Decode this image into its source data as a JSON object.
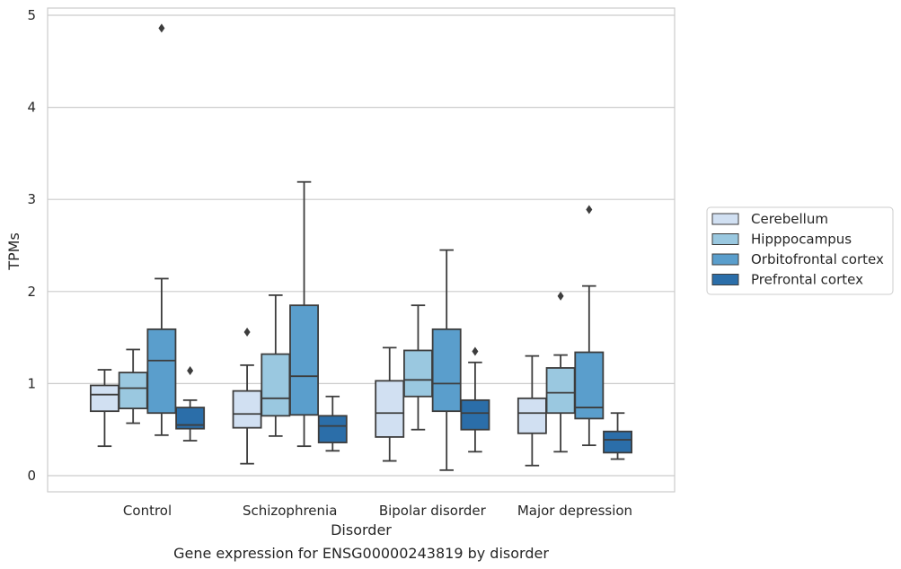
{
  "chart_data": {
    "type": "boxplot",
    "caption": "Gene expression for ENSG00000243819 by disorder",
    "xlabel": "Disorder",
    "ylabel": "TPMs",
    "ylim": [
      -0.17,
      5.12
    ],
    "yticks": [
      0,
      1,
      2,
      3,
      4,
      5
    ],
    "grid": "horizontal",
    "legend_position": "right",
    "categories": [
      "Control",
      "Schizophrenia",
      "Bipolar disorder",
      "Major depression"
    ],
    "series": [
      {
        "name": "Cerebellum",
        "color": "#d1e0f2",
        "boxes": [
          {
            "whisker_low": 0.32,
            "q1": 0.7,
            "median": 0.88,
            "q3": 0.98,
            "whisker_high": 1.15,
            "outliers": []
          },
          {
            "whisker_low": 0.13,
            "q1": 0.52,
            "median": 0.67,
            "q3": 0.92,
            "whisker_high": 1.2,
            "outliers": [
              1.56
            ]
          },
          {
            "whisker_low": 0.16,
            "q1": 0.42,
            "median": 0.68,
            "q3": 1.03,
            "whisker_high": 1.39,
            "outliers": []
          },
          {
            "whisker_low": 0.11,
            "q1": 0.46,
            "median": 0.68,
            "q3": 0.84,
            "whisker_high": 1.3,
            "outliers": []
          }
        ]
      },
      {
        "name": "Hipppocampus",
        "color": "#9ac8e0",
        "boxes": [
          {
            "whisker_low": 0.57,
            "q1": 0.73,
            "median": 0.95,
            "q3": 1.12,
            "whisker_high": 1.37,
            "outliers": []
          },
          {
            "whisker_low": 0.43,
            "q1": 0.65,
            "median": 0.84,
            "q3": 1.32,
            "whisker_high": 1.96,
            "outliers": []
          },
          {
            "whisker_low": 0.5,
            "q1": 0.86,
            "median": 1.04,
            "q3": 1.36,
            "whisker_high": 1.85,
            "outliers": []
          },
          {
            "whisker_low": 0.26,
            "q1": 0.68,
            "median": 0.9,
            "q3": 1.17,
            "whisker_high": 1.31,
            "outliers": [
              1.95
            ]
          }
        ]
      },
      {
        "name": "Orbitofrontal cortex",
        "color": "#5a9ecc",
        "boxes": [
          {
            "whisker_low": 0.44,
            "q1": 0.68,
            "median": 1.25,
            "q3": 1.59,
            "whisker_high": 2.14,
            "outliers": [
              4.86
            ]
          },
          {
            "whisker_low": 0.32,
            "q1": 0.66,
            "median": 1.08,
            "q3": 1.85,
            "whisker_high": 3.19,
            "outliers": []
          },
          {
            "whisker_low": 0.06,
            "q1": 0.7,
            "median": 1.0,
            "q3": 1.59,
            "whisker_high": 2.45,
            "outliers": []
          },
          {
            "whisker_low": 0.33,
            "q1": 0.62,
            "median": 0.74,
            "q3": 1.34,
            "whisker_high": 2.06,
            "outliers": [
              2.89
            ]
          }
        ]
      },
      {
        "name": "Prefrontal cortex",
        "color": "#2b6ea9",
        "boxes": [
          {
            "whisker_low": 0.38,
            "q1": 0.51,
            "median": 0.55,
            "q3": 0.74,
            "whisker_high": 0.82,
            "outliers": [
              1.14
            ]
          },
          {
            "whisker_low": 0.27,
            "q1": 0.36,
            "median": 0.54,
            "q3": 0.65,
            "whisker_high": 0.86,
            "outliers": []
          },
          {
            "whisker_low": 0.26,
            "q1": 0.5,
            "median": 0.68,
            "q3": 0.82,
            "whisker_high": 1.23,
            "outliers": [
              1.35
            ]
          },
          {
            "whisker_low": 0.18,
            "q1": 0.25,
            "median": 0.39,
            "q3": 0.48,
            "whisker_high": 0.68,
            "outliers": []
          }
        ]
      }
    ]
  }
}
